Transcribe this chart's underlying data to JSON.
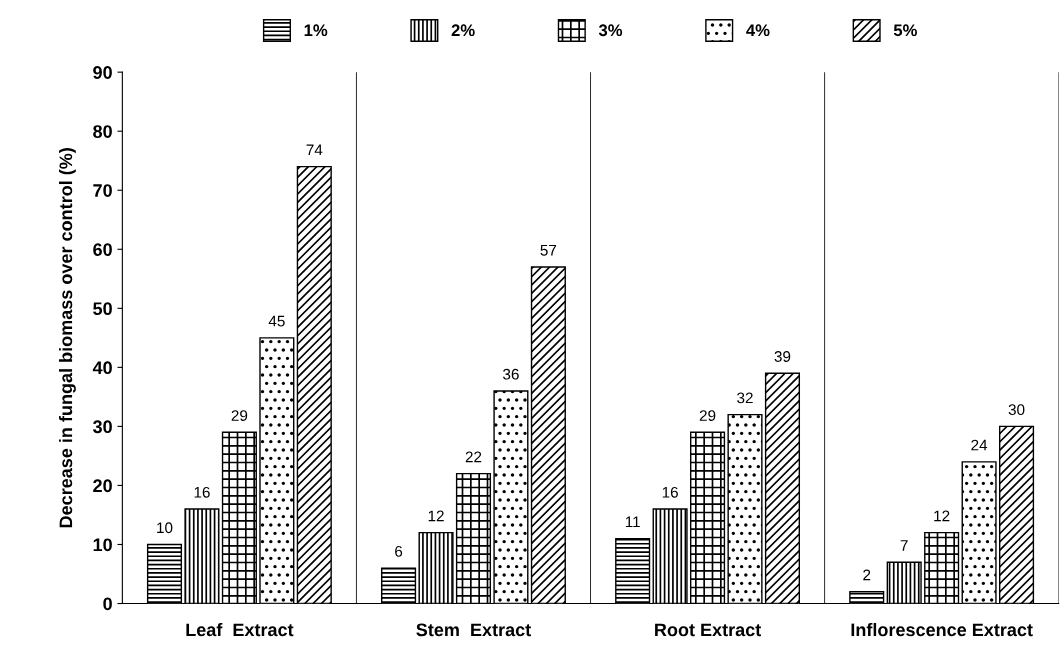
{
  "chart_data": {
    "type": "bar",
    "ylabel": "Decrease in fungal biomass over control (%)",
    "categories": [
      "Leaf  Extract",
      "Stem  Extract",
      "Root Extract",
      "Inflorescence Extract"
    ],
    "series": [
      {
        "name": "1%",
        "color": "#000000",
        "values": [
          10,
          6,
          11,
          2
        ]
      },
      {
        "name": "2%",
        "color": "#000000",
        "values": [
          16,
          12,
          16,
          7
        ]
      },
      {
        "name": "3%",
        "color": "#000000",
        "values": [
          29,
          22,
          29,
          12
        ]
      },
      {
        "name": "4%",
        "color": "#000000",
        "values": [
          45,
          36,
          32,
          24
        ]
      },
      {
        "name": "5%",
        "color": "#000000",
        "values": [
          74,
          57,
          39,
          30
        ]
      }
    ],
    "ylim": [
      0,
      90
    ],
    "yticks": [
      0,
      10,
      20,
      30,
      40,
      50,
      60,
      70,
      80,
      90
    ],
    "grid": "x",
    "legend": "top",
    "data_labels": true
  }
}
